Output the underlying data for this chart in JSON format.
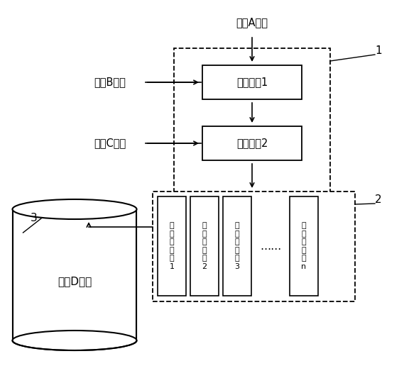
{
  "bg_color": "#ffffff",
  "text_color": "#000000",
  "mixer1_label": "微混合器1",
  "mixer2_label": "微混合器2",
  "matA_label": "物料A溶液",
  "matB_label": "物料B溶液",
  "matC_label": "物料C溶液",
  "matD_label": "物料D溶液",
  "ch1": "微\n反\n应\n通\n道\n1",
  "ch2": "微\n反\n应\n通\n道\n2",
  "ch3": "微\n反\n应\n通\n道\n3",
  "chn": "微\n反\n应\n通\n道\nn",
  "dots": "……",
  "label1": "1",
  "label2": "2",
  "label3": "3"
}
